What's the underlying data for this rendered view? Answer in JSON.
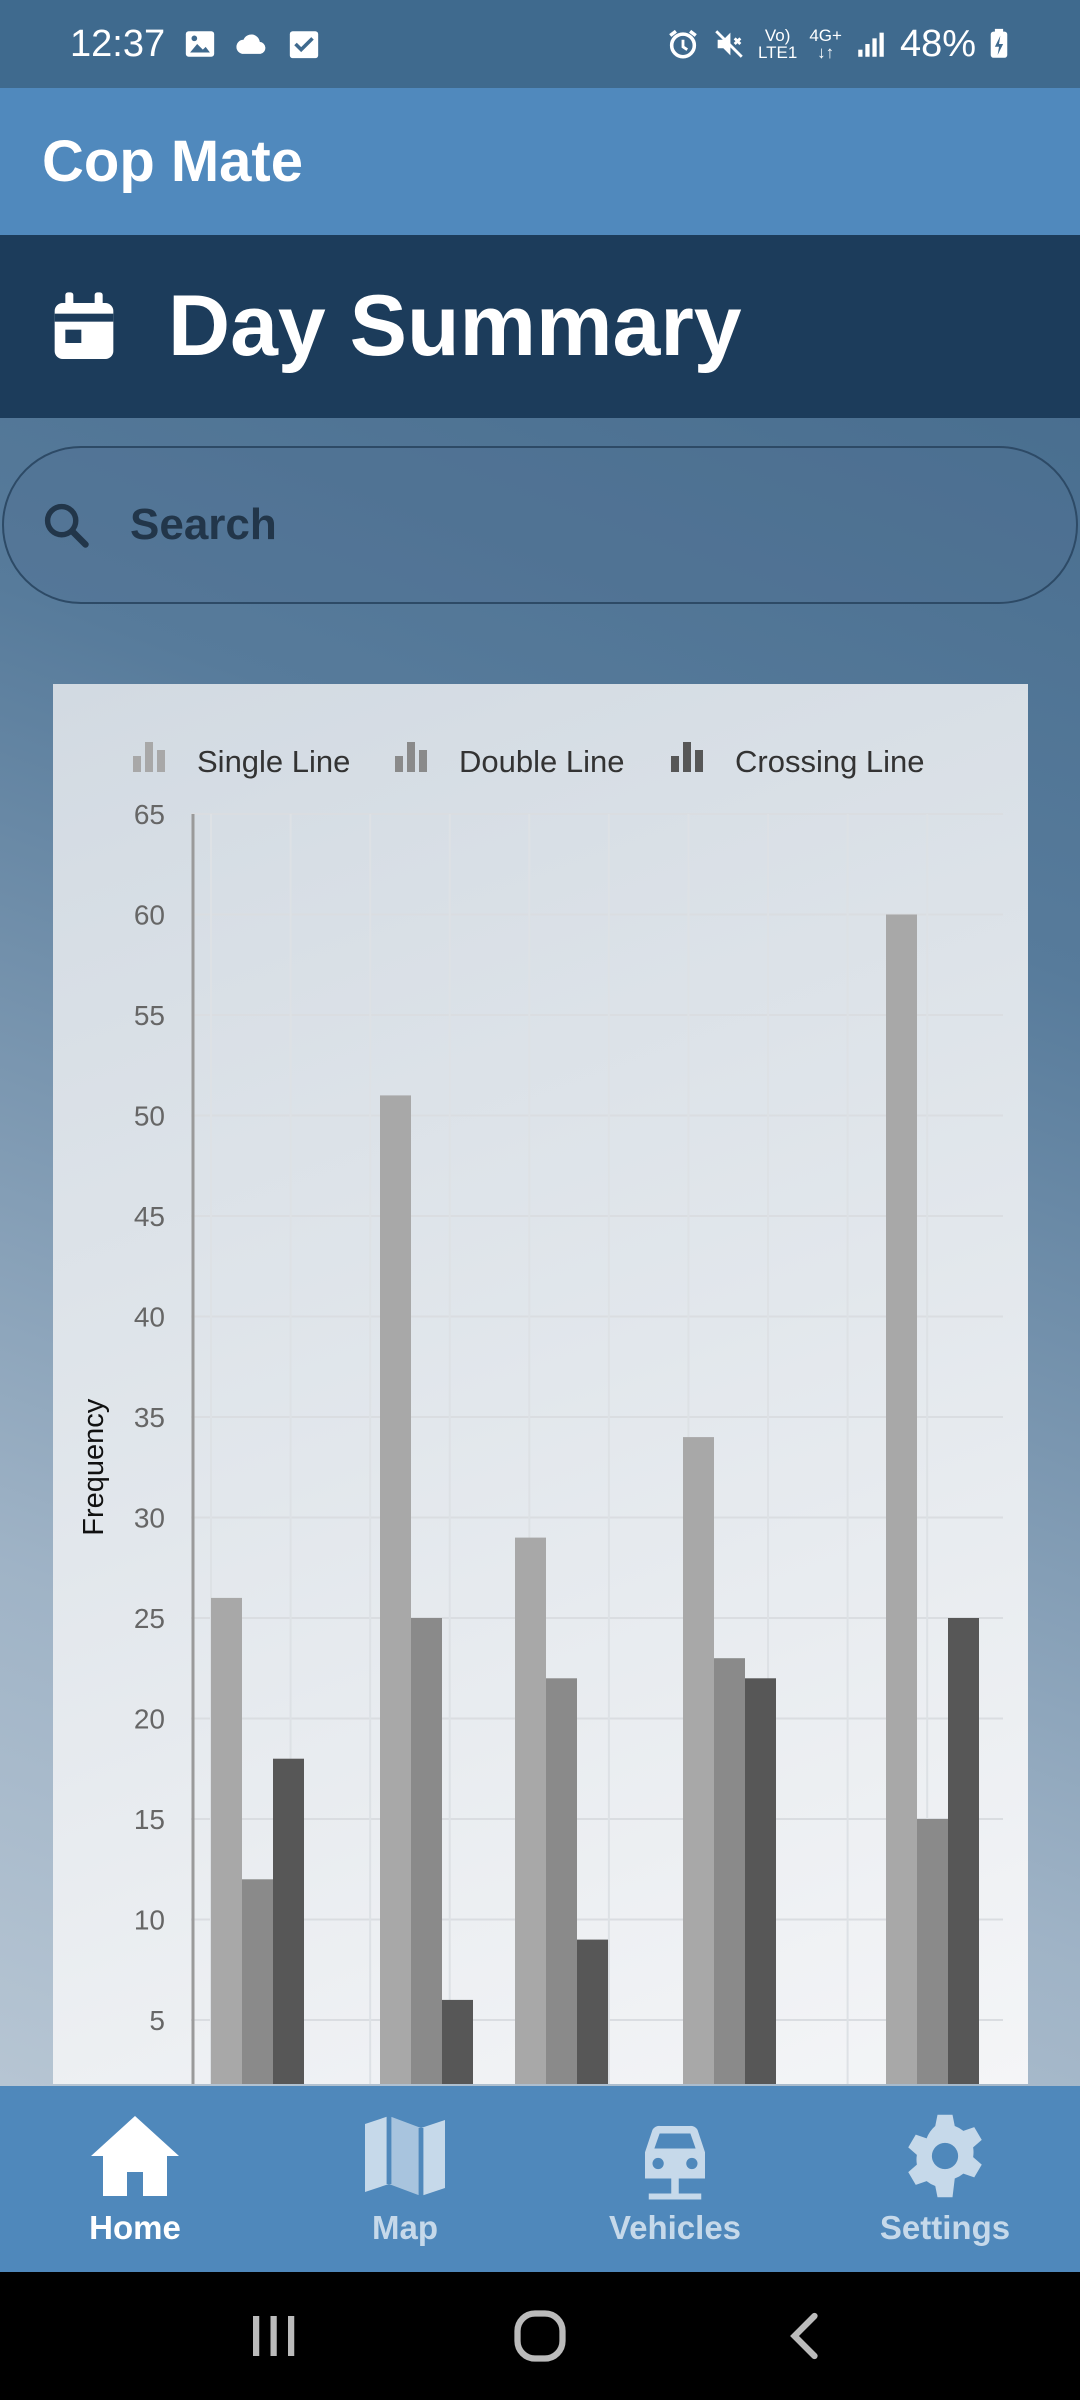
{
  "status_bar": {
    "time": "12:37",
    "network_top": "Vo)",
    "network_bottom": "LTE1",
    "network_type": "4G+",
    "battery": "48%",
    "icons": [
      "gallery-icon",
      "cloud-icon",
      "check-icon",
      "alarm-icon",
      "mute-icon",
      "signal-icon",
      "battery-icon"
    ]
  },
  "app": {
    "title": "Cop Mate"
  },
  "header": {
    "title": "Day Summary",
    "icon": "calendar-icon"
  },
  "search": {
    "placeholder": "Search",
    "value": ""
  },
  "chart_data": {
    "type": "bar",
    "title": "",
    "ylabel": "Frequency",
    "xlabel": "",
    "ylim": [
      0,
      65
    ],
    "yticks": [
      5,
      10,
      15,
      20,
      25,
      30,
      35,
      40,
      45,
      50,
      55,
      60,
      65
    ],
    "legend_position": "top",
    "categories": [
      "",
      "",
      "",
      "",
      ""
    ],
    "series": [
      {
        "name": "Single Line",
        "color": "#a8a8a8",
        "values": [
          26,
          51,
          29,
          34,
          60
        ]
      },
      {
        "name": "Double Line",
        "color": "#8a8a8a",
        "values": [
          12,
          25,
          22,
          23,
          15
        ]
      },
      {
        "name": "Crossing Line",
        "color": "#575757",
        "values": [
          18,
          6,
          9,
          22,
          25
        ]
      }
    ]
  },
  "bottom_nav": {
    "items": [
      {
        "label": "Home",
        "icon": "home-icon",
        "active": true
      },
      {
        "label": "Map",
        "icon": "map-icon",
        "active": false
      },
      {
        "label": "Vehicles",
        "icon": "car-icon",
        "active": false
      },
      {
        "label": "Settings",
        "icon": "gear-icon",
        "active": false
      }
    ]
  }
}
